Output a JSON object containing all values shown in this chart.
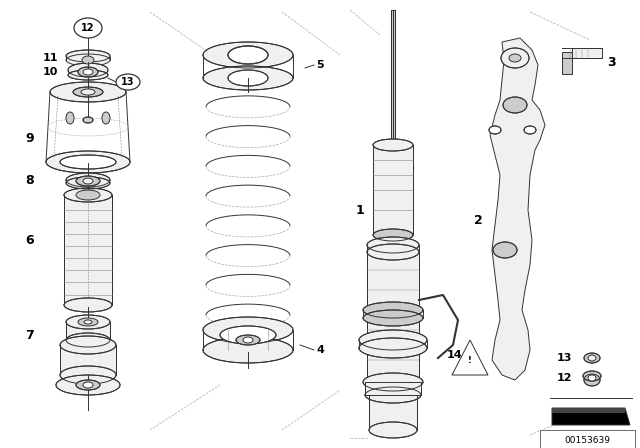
{
  "background_color": "#ffffff",
  "diagram_id": "00153639",
  "fig_width": 6.4,
  "fig_height": 4.48,
  "dpi": 100,
  "line_color": "#333333",
  "light_gray": "#aaaaaa",
  "mid_gray": "#888888",
  "part_fill": "#f0f0f0",
  "dark_fill": "#cccccc"
}
